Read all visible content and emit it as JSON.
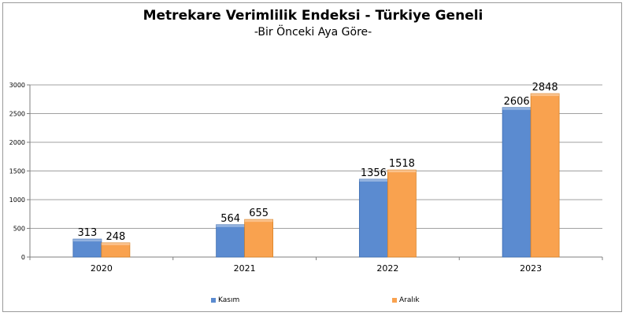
{
  "colors": {
    "kasim": "#5b8bd0",
    "aralik": "#f9a24f",
    "grid": "#a0a0a0",
    "axis": "#7f7f7f"
  },
  "chart_data": {
    "type": "bar",
    "title": "Metrekare Verimlilik Endeksi - Türkiye Geneli",
    "subtitle": "-Bir Önceki Aya Göre-",
    "categories": [
      "2020",
      "2021",
      "2022",
      "2023"
    ],
    "series": [
      {
        "name": "Kasım",
        "values": [
          313,
          564,
          1356,
          2606
        ]
      },
      {
        "name": "Aralık",
        "values": [
          248,
          655,
          1518,
          2848
        ]
      }
    ],
    "ylim": [
      0,
      3000
    ],
    "yticks": [
      "0",
      "500",
      "1000",
      "1500",
      "2000",
      "2500",
      "3000"
    ],
    "grid": true,
    "legend_position": "bottom"
  }
}
